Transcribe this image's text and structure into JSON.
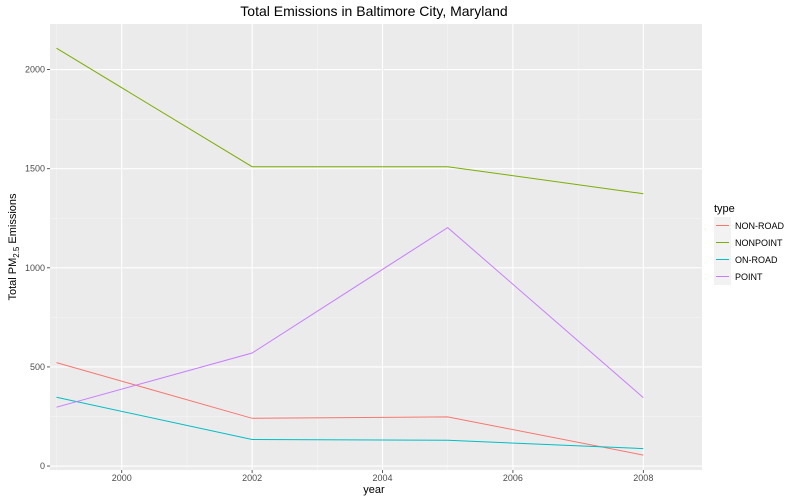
{
  "chart_data": {
    "type": "line",
    "title": "Total Emissions in Baltimore City, Maryland",
    "xlabel": "year",
    "ylabel": {
      "prefix": "Total PM",
      "subscript": "2.5",
      "suffix": " Emissions"
    },
    "x": [
      1999,
      2002,
      2005,
      2008
    ],
    "xlim": [
      1998.9,
      2008.9
    ],
    "ylim": [
      -20,
      2230
    ],
    "x_ticks": [
      2000,
      2002,
      2004,
      2006,
      2008
    ],
    "y_ticks": [
      0,
      500,
      1000,
      1500,
      2000
    ],
    "grid": true,
    "legend": {
      "title": "type",
      "placement": "right"
    },
    "series": [
      {
        "name": "NON-ROAD",
        "color": "#F8766D",
        "values": [
          522,
          241,
          248,
          55
        ]
      },
      {
        "name": "NONPOINT",
        "color": "#7CAE00",
        "values": [
          2108,
          1510,
          1510,
          1374
        ]
      },
      {
        "name": "ON-ROAD",
        "color": "#00BFC4",
        "values": [
          347,
          134,
          130,
          88
        ]
      },
      {
        "name": "POINT",
        "color": "#C77CFF",
        "values": [
          297,
          570,
          1203,
          345
        ]
      }
    ]
  }
}
